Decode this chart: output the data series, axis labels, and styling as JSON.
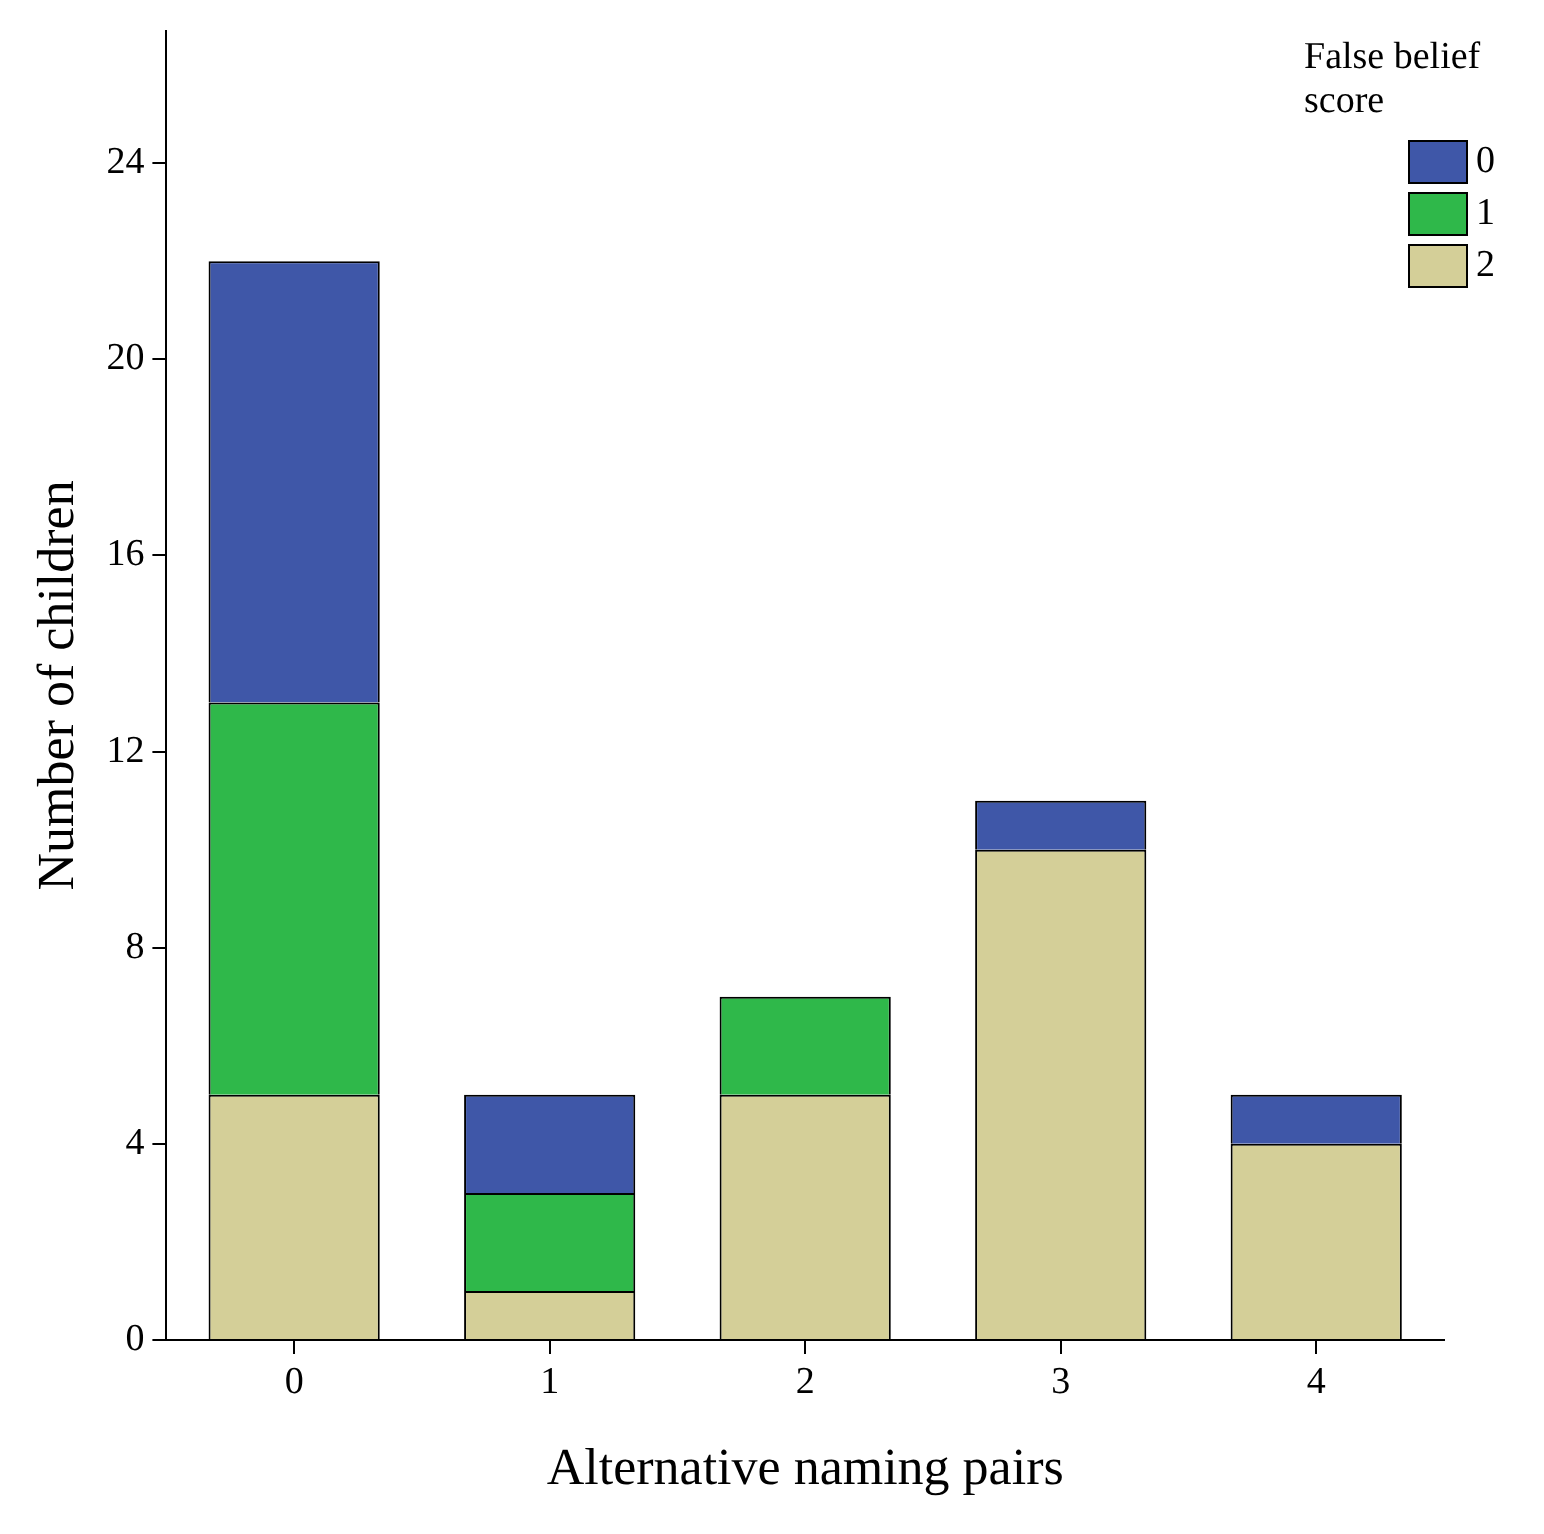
{
  "chart_data": {
    "type": "bar",
    "stacked": true,
    "xlabel": "Alternative naming pairs",
    "ylabel": "Number of children",
    "legend_title": "False belief score",
    "legend": "top right",
    "grid": false,
    "categories": [
      "0",
      "1",
      "2",
      "3",
      "4"
    ],
    "series": [
      {
        "name": "2",
        "color": "#d4cf98",
        "values": [
          5,
          1,
          5,
          10,
          4
        ]
      },
      {
        "name": "1",
        "color": "#2fb84a",
        "values": [
          8,
          2,
          2,
          0,
          0
        ]
      },
      {
        "name": "0",
        "color": "#3f57a8",
        "values": [
          9,
          2,
          0,
          1,
          1
        ]
      }
    ],
    "ylim": [
      0,
      26.7
    ],
    "yticks": [
      0,
      4,
      8,
      12,
      16,
      20,
      24
    ]
  }
}
